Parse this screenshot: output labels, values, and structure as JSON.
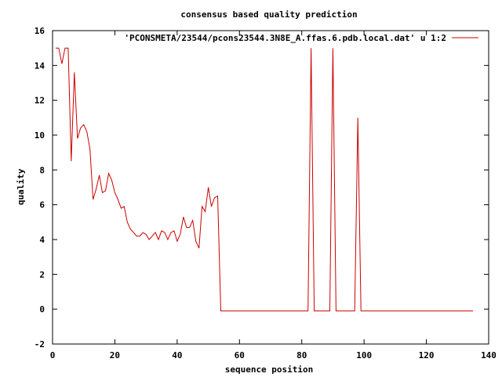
{
  "chart_data": {
    "type": "line",
    "title": "consensus based quality prediction",
    "xlabel": "sequence position",
    "ylabel": "quality",
    "xlim": [
      0,
      140
    ],
    "ylim": [
      -2,
      16
    ],
    "xticks": [
      0,
      20,
      40,
      60,
      80,
      100,
      120,
      140
    ],
    "yticks": [
      -2,
      0,
      2,
      4,
      6,
      8,
      10,
      12,
      14,
      16
    ],
    "grid": false,
    "legend_position": "top-right",
    "series": [
      {
        "name": "'PCONSMETA/23544/pcons23544.3N8E_A.ffas.6.pdb.local.dat' u 1:2",
        "color": "#cc0000",
        "x": [
          1,
          2,
          3,
          4,
          5,
          6,
          7,
          8,
          9,
          10,
          11,
          12,
          13,
          14,
          15,
          16,
          17,
          18,
          19,
          20,
          21,
          22,
          23,
          24,
          25,
          26,
          27,
          28,
          29,
          30,
          31,
          32,
          33,
          34,
          35,
          36,
          37,
          38,
          39,
          40,
          41,
          42,
          43,
          44,
          45,
          46,
          47,
          48,
          49,
          50,
          51,
          52,
          53,
          54,
          55,
          56,
          57,
          58,
          59,
          60,
          61,
          62,
          63,
          64,
          65,
          66,
          67,
          68,
          69,
          70,
          71,
          72,
          73,
          74,
          75,
          76,
          77,
          78,
          79,
          80,
          81,
          82,
          83,
          84,
          85,
          86,
          87,
          88,
          89,
          90,
          91,
          92,
          93,
          94,
          95,
          96,
          97,
          98,
          99,
          100,
          101,
          102,
          103,
          104,
          105,
          106,
          107,
          108,
          109,
          110,
          111,
          112,
          113,
          114,
          115,
          116,
          117,
          118,
          119,
          120,
          121,
          122,
          123,
          124,
          125,
          126,
          127,
          128,
          129,
          130,
          131,
          132,
          133,
          134,
          135
        ],
        "y": [
          15.0,
          15.0,
          14.1,
          15.0,
          15.0,
          8.5,
          13.6,
          9.8,
          10.4,
          10.6,
          10.2,
          9.2,
          6.3,
          6.9,
          7.7,
          6.7,
          6.8,
          7.8,
          7.4,
          6.7,
          6.3,
          5.8,
          5.9,
          5.0,
          4.6,
          4.4,
          4.2,
          4.2,
          4.4,
          4.3,
          4.0,
          4.2,
          4.4,
          4.0,
          4.5,
          4.4,
          4.0,
          4.4,
          4.5,
          3.9,
          4.3,
          5.3,
          4.7,
          4.7,
          5.1,
          3.9,
          3.5,
          5.9,
          5.6,
          7.0,
          5.9,
          6.4,
          6.5,
          -0.1,
          -0.1,
          -0.1,
          -0.1,
          -0.1,
          -0.1,
          -0.1,
          -0.1,
          -0.1,
          -0.1,
          -0.1,
          -0.1,
          -0.1,
          -0.1,
          -0.1,
          -0.1,
          -0.1,
          -0.1,
          -0.1,
          -0.1,
          -0.1,
          -0.1,
          -0.1,
          -0.1,
          -0.1,
          -0.1,
          -0.1,
          -0.1,
          -0.1,
          15.0,
          -0.1,
          -0.1,
          -0.1,
          -0.1,
          -0.1,
          -0.1,
          15.0,
          -0.1,
          -0.1,
          -0.1,
          -0.1,
          -0.1,
          -0.1,
          -0.1,
          11.0,
          -0.1,
          -0.1,
          -0.1,
          -0.1,
          -0.1,
          -0.1,
          -0.1,
          -0.1,
          -0.1,
          -0.1,
          -0.1,
          -0.1,
          -0.1,
          -0.1,
          -0.1,
          -0.1,
          -0.1,
          -0.1,
          -0.1,
          -0.1,
          -0.1,
          -0.1,
          -0.1,
          -0.1,
          -0.1,
          -0.1,
          -0.1,
          -0.1,
          -0.1,
          -0.1,
          -0.1,
          -0.1,
          -0.1,
          -0.1,
          -0.1,
          -0.1,
          -0.1
        ]
      }
    ]
  }
}
